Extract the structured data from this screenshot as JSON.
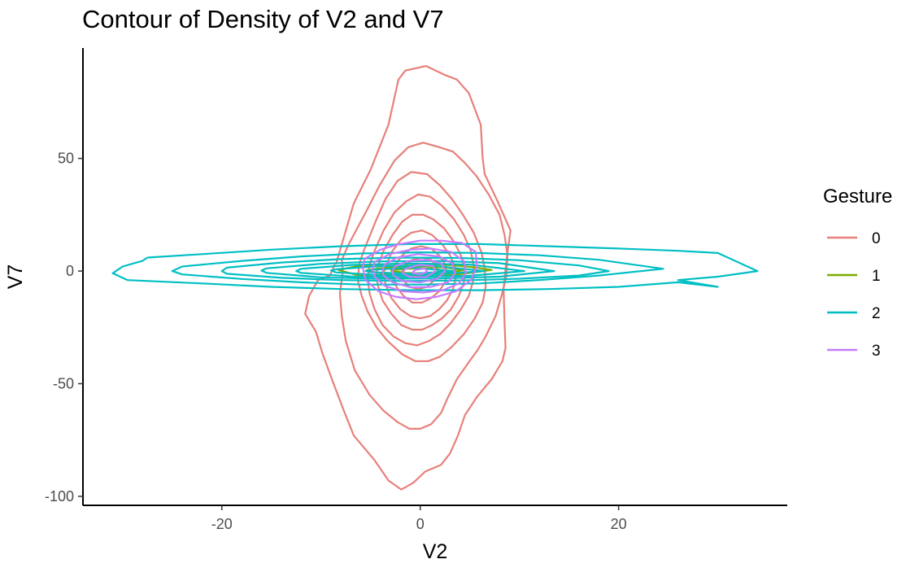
{
  "chart_data": {
    "type": "line",
    "subtype": "density-contour",
    "title": "Contour of Density of V2 and V7",
    "xlabel": "V2",
    "ylabel": "V7",
    "xlim": [
      -34,
      37
    ],
    "ylim": [
      -104,
      99
    ],
    "x_ticks": [
      {
        "value": -20,
        "label": "-20"
      },
      {
        "value": 0,
        "label": "0"
      },
      {
        "value": 20,
        "label": "20"
      }
    ],
    "y_ticks": [
      {
        "value": 50,
        "label": "50"
      },
      {
        "value": 0,
        "label": "0"
      },
      {
        "value": -50,
        "label": "-50"
      },
      {
        "value": -100,
        "label": "-100"
      }
    ],
    "grid": false,
    "legend": {
      "title": "Gesture",
      "position": "right"
    },
    "series": [
      {
        "name": "0",
        "color": "#E7807A",
        "contours": [
          {
            "x": [
              -8.5,
              -6.7,
              -5,
              -3.2,
              -2.2,
              -1.5,
              0.6,
              2.5,
              3.7,
              4.9,
              6.1,
              6.3,
              6.5,
              7.8,
              9.1,
              8.7,
              8.4,
              8.5,
              8.6,
              8.3,
              7.2,
              5.7,
              4.5,
              3.8,
              3,
              2.1,
              0.5,
              -0.7,
              -1.9,
              -3.2,
              -4.6,
              -6.7,
              -7.7,
              -8.9,
              -9.9,
              -10.5,
              -11.6,
              -11.2,
              -10.3,
              -9.1,
              -8.6
            ],
            "y": [
              3,
              30,
              45,
              65,
              85,
              89,
              91,
              87,
              85,
              79,
              65,
              50,
              43,
              31,
              18,
              5,
              -8,
              -23,
              -34,
              -40,
              -48,
              -56,
              -64,
              -73,
              -81,
              -86,
              -89,
              -94,
              -97,
              -93,
              -84,
              -73,
              -62,
              -48,
              -36,
              -27,
              -19,
              -11,
              -4,
              -2,
              3
            ]
          },
          {
            "x": [
              -7.9,
              -7.2,
              -5.5,
              -4.1,
              -2.6,
              -1.2,
              0.3,
              1.9,
              3.3,
              4.5,
              5.7,
              6.9,
              8,
              8.5,
              8.8,
              8.7,
              8.2,
              7.6,
              6.6,
              5.8,
              4.8,
              3.7,
              2.8,
              2.1,
              1.1,
              0,
              -1.1,
              -2.3,
              -3.7,
              -5.1,
              -6.6,
              -7.5,
              -7.9,
              -8.1,
              -7.8,
              -7.9
            ],
            "y": [
              5,
              12,
              26,
              38,
              49,
              55,
              57,
              55,
              53,
              48,
              42,
              34,
              25,
              16,
              7,
              -2,
              -11,
              -20,
              -29,
              -35,
              -41,
              -48,
              -56,
              -63,
              -68,
              -70,
              -70,
              -67,
              -62,
              -55,
              -44,
              -31,
              -20,
              -10,
              0,
              5
            ]
          },
          {
            "x": [
              -6.1,
              -5.6,
              -4.5,
              -3.5,
              -2.3,
              -0.9,
              0.7,
              2,
              3.2,
              4.3,
              5.4,
              6.2,
              6.5,
              6.6,
              6.3,
              5.5,
              4.4,
              3.1,
              2,
              0.8,
              -0.5,
              -1.8,
              -3.3,
              -4.4,
              -5.3,
              -5.9,
              -6.3,
              -6.2,
              -6.1
            ],
            "y": [
              4,
              10,
              22,
              32,
              40,
              44,
              43,
              38,
              32,
              25,
              17,
              8,
              1,
              -7,
              -14,
              -21,
              -28,
              -34,
              -38,
              -40,
              -40,
              -37,
              -31,
              -25,
              -18,
              -11,
              -4,
              1,
              4
            ]
          },
          {
            "x": [
              -5.1,
              -4.6,
              -3.7,
              -2.6,
              -1.4,
              -0.2,
              1,
              2.2,
              3.4,
              4.4,
              5.1,
              5.4,
              5.3,
              4.9,
              4.1,
              3.1,
              2,
              0.9,
              -0.3,
              -1.5,
              -2.7,
              -3.8,
              -4.6,
              -5.1,
              -5.3,
              -5.1
            ],
            "y": [
              3,
              9,
              18,
              26,
              31,
              34,
              33,
              29,
              23,
              16,
              9,
              2,
              -5,
              -11,
              -17,
              -23,
              -28,
              -31,
              -33,
              -32,
              -29,
              -24,
              -17,
              -10,
              -3,
              3
            ]
          },
          {
            "x": [
              -4.2,
              -3.7,
              -2.8,
              -1.8,
              -0.8,
              0.3,
              1.3,
              2.4,
              3.4,
              4.1,
              4.5,
              4.4,
              3.9,
              3.1,
              2.2,
              1.2,
              0.2,
              -0.8,
              -1.9,
              -2.9,
              -3.8,
              -4.3,
              -4.4,
              -4.2
            ],
            "y": [
              3,
              9,
              16,
              22,
              25,
              25,
              23,
              19,
              13,
              7,
              1,
              -5,
              -11,
              -17,
              -21,
              -24,
              -26,
              -26,
              -24,
              -19,
              -13,
              -6,
              -1,
              3
            ]
          },
          {
            "x": [
              -3.4,
              -2.8,
              -1.9,
              -0.9,
              0.2,
              1.2,
              2.2,
              3,
              3.5,
              3.6,
              3.3,
              2.7,
              1.9,
              1,
              0,
              -1,
              -2,
              -2.9,
              -3.5,
              -3.7,
              -3.4
            ],
            "y": [
              3,
              9,
              14,
              17,
              18,
              16,
              12,
              7,
              2,
              -3,
              -8,
              -13,
              -17,
              -20,
              -21,
              -20,
              -17,
              -12,
              -6,
              -1,
              3
            ]
          },
          {
            "x": [
              -2.5,
              -1.8,
              -0.9,
              0.1,
              1.1,
              1.9,
              2.5,
              2.7,
              2.5,
              1.9,
              1.1,
              0.2,
              -0.8,
              -1.7,
              -2.4,
              -2.8,
              -2.5
            ],
            "y": [
              3,
              7,
              10,
              11,
              10,
              7,
              3,
              -1,
              -5,
              -9,
              -12,
              -14,
              -14,
              -11,
              -7,
              -2,
              3
            ]
          },
          {
            "x": [
              -1.6,
              -0.8,
              0.2,
              1.1,
              1.7,
              1.8,
              1.4,
              0.7,
              -0.2,
              -1.1,
              -1.7,
              -1.9,
              -1.6
            ],
            "y": [
              2,
              5,
              6,
              5,
              2,
              -1,
              -4,
              -7,
              -8,
              -7,
              -4,
              -1,
              2
            ]
          }
        ]
      },
      {
        "name": "1",
        "color": "#7CAE00",
        "contours": [
          {
            "x": [
              -8.3,
              -6.5,
              -4.5,
              -2.5,
              -0.5,
              1.5,
              3.5,
              5.5,
              7.2,
              5.5,
              3.5,
              1.5,
              -0.5,
              -2.5,
              -4.5,
              -6.5,
              -8.3
            ],
            "y": [
              0.5,
              2,
              2.9,
              3.2,
              3.2,
              3,
              2.5,
              1.6,
              0.5,
              -0.6,
              -1.6,
              -2.3,
              -2.8,
              -3,
              -2.6,
              -1.6,
              0.5
            ]
          },
          {
            "x": [
              -5.5,
              -3.5,
              -1.5,
              0.5,
              2.5,
              4.3,
              2.5,
              0.5,
              -1.5,
              -3.5,
              -5.5
            ],
            "y": [
              0.3,
              1.5,
              2,
              2,
              1.6,
              0.3,
              -1,
              -1.7,
              -1.9,
              -1.4,
              0.3
            ]
          },
          {
            "x": [
              -3,
              -1.5,
              0,
              1.5,
              2.5,
              1.5,
              0,
              -1.5,
              -3
            ],
            "y": [
              0.2,
              1,
              1.2,
              1,
              0.2,
              -0.7,
              -1,
              -0.8,
              0.2
            ]
          }
        ]
      },
      {
        "name": "2",
        "color": "#00BFC4",
        "contours": [
          {
            "x": [
              -27.5,
              -22,
              -15,
              -8,
              -1,
              6,
              13,
              20,
              26,
              30,
              34,
              30,
              26,
              30,
              26,
              20,
              13,
              6,
              -1,
              -8,
              -15,
              -22,
              -29.5,
              -31,
              -30,
              -28,
              -27.5
            ],
            "y": [
              6,
              7.5,
              9.5,
              11,
              12,
              12,
              11,
              10,
              9,
              8,
              0,
              -2.5,
              -4,
              -7,
              -5,
              -7,
              -8,
              -8.5,
              -8.5,
              -8,
              -7,
              -5.5,
              -4,
              -1,
              2,
              4.5,
              6
            ]
          },
          {
            "x": [
              -24,
              -18,
              -12,
              -6,
              0,
              6,
              12,
              18,
              24.5,
              18,
              12,
              6,
              0,
              -6,
              -12,
              -18,
              -24,
              -25,
              -24
            ],
            "y": [
              2,
              4.5,
              6.5,
              7.8,
              8.3,
              8,
              7,
              5,
              1,
              -2,
              -4,
              -5.5,
              -6,
              -6,
              -5,
              -3.5,
              -1.5,
              0,
              2
            ]
          },
          {
            "x": [
              -19.5,
              -14,
              -8,
              -2,
              4,
              10,
              16,
              19,
              16,
              10,
              4,
              -2,
              -8,
              -14,
              -19.5,
              -20,
              -19.5
            ],
            "y": [
              1.5,
              3.8,
              5.3,
              6,
              5.8,
              4.8,
              2.5,
              0,
              -2,
              -3.4,
              -4.2,
              -4.4,
              -4,
              -3,
              -1.2,
              0,
              1.5
            ]
          },
          {
            "x": [
              -15.5,
              -10,
              -4,
              2,
              8,
              13.5,
              8,
              2,
              -4,
              -10,
              -15.5,
              -16,
              -15.5
            ],
            "y": [
              1.2,
              3.2,
              4.3,
              4.5,
              3.5,
              0,
              -2.5,
              -3.3,
              -3.4,
              -2.8,
              -0.8,
              0.2,
              1.2
            ]
          },
          {
            "x": [
              -12,
              -7,
              -1,
              5,
              10.5,
              5,
              -1,
              -7,
              -12,
              -12.5,
              -12
            ],
            "y": [
              1,
              2.7,
              3.4,
              2.9,
              0,
              -2.1,
              -2.6,
              -2.4,
              -0.8,
              0,
              1
            ]
          },
          {
            "x": [
              -8.5,
              -4,
              1,
              6.5,
              1,
              -4,
              -8.5,
              -9,
              -8.5
            ],
            "y": [
              0.8,
              2.2,
              2.5,
              0,
              -1.6,
              -1.8,
              -0.6,
              0.2,
              0.8
            ]
          },
          {
            "x": [
              -5,
              -1,
              3.5,
              -1,
              -5,
              -5.5,
              -5
            ],
            "y": [
              0.5,
              1.5,
              0,
              -1.2,
              -0.5,
              0,
              0.5
            ]
          }
        ]
      },
      {
        "name": "3",
        "color": "#C77CFF",
        "contours": [
          {
            "x": [
              -5.6,
              -4,
              -2.1,
              0,
              2.1,
              4.2,
              5.6,
              5.7,
              5.1,
              3.6,
              1.6,
              -0.4,
              -2.4,
              -4.2,
              -5.5,
              -5.8,
              -5.6
            ],
            "y": [
              5.5,
              9.5,
              12,
              13.5,
              13.5,
              12.5,
              8.5,
              2,
              -4,
              -9,
              -11.5,
              -12.5,
              -11.5,
              -9,
              -4,
              1.5,
              5.5
            ]
          },
          {
            "x": [
              -4.6,
              -3.1,
              -1,
              1.1,
              3.1,
              4.4,
              4.6,
              3.9,
              2.3,
              0.3,
              -1.8,
              -3.6,
              -4.6,
              -4.8,
              -4.6
            ],
            "y": [
              4,
              7.5,
              9.5,
              10,
              8.5,
              4.5,
              -1,
              -5.5,
              -8.5,
              -9.5,
              -9,
              -6.5,
              -2.5,
              1,
              4
            ]
          },
          {
            "x": [
              -3.6,
              -2.3,
              -0.2,
              1.9,
              3.2,
              3.5,
              2.8,
              1.1,
              -1,
              -2.8,
              -3.7,
              -3.8,
              -3.6
            ],
            "y": [
              3,
              6,
              7.5,
              6.5,
              3.5,
              -1,
              -5,
              -7,
              -7.2,
              -5,
              -2,
              0.5,
              3
            ]
          },
          {
            "x": [
              -2.6,
              -1.2,
              0.7,
              2.1,
              2.5,
              1.7,
              0,
              -1.8,
              -2.7,
              -2.8,
              -2.6
            ],
            "y": [
              2,
              4.5,
              5,
              3.5,
              0,
              -3.5,
              -5,
              -4.5,
              -2,
              0,
              2
            ]
          },
          {
            "x": [
              -1.5,
              0,
              1.3,
              1.5,
              0.5,
              -1.1,
              -1.8,
              -1.5
            ],
            "y": [
              1,
              2.8,
              2.2,
              -0.2,
              -2.8,
              -2.6,
              -0.8,
              1
            ]
          },
          {
            "x": [
              -0.5,
              0.5,
              0.7,
              0,
              -0.8,
              -0.5
            ],
            "y": [
              0.5,
              1.2,
              -0.3,
              -1.5,
              -0.8,
              0.5
            ]
          }
        ]
      }
    ]
  }
}
